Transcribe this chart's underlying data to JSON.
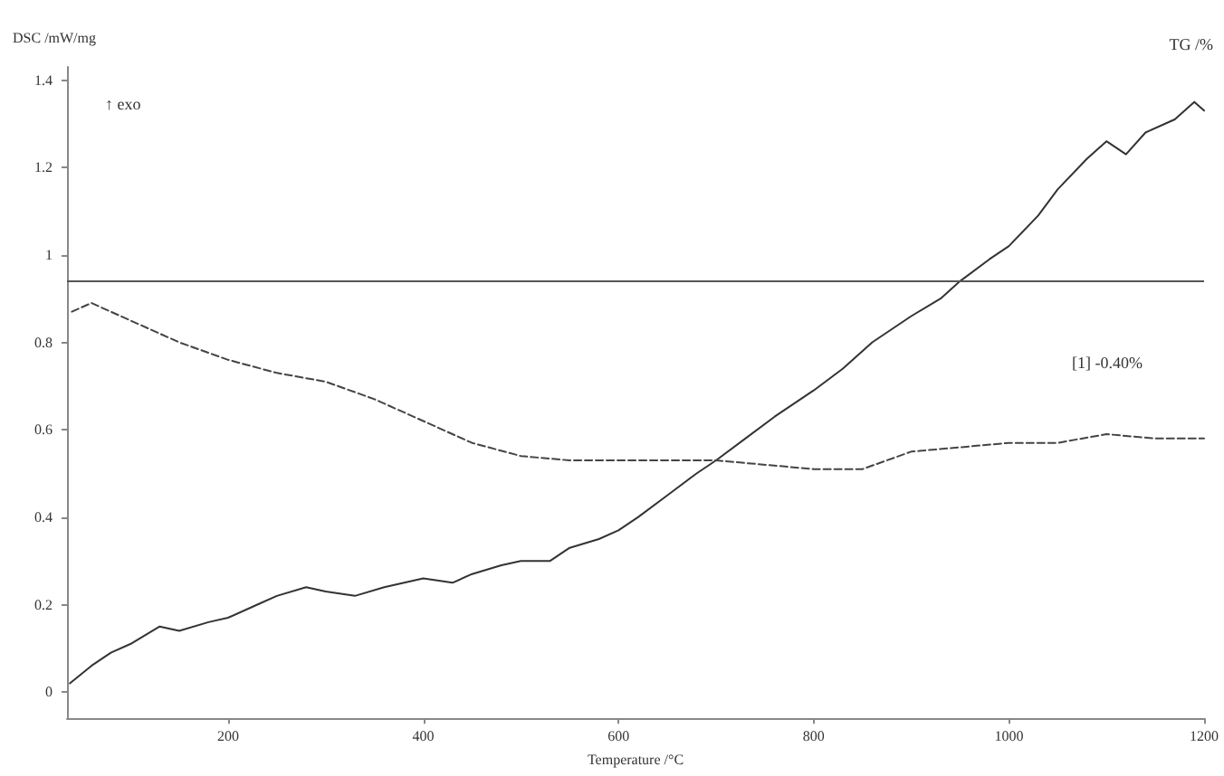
{
  "chart_data": {
    "type": "line",
    "xlabel": "Temperature /°C",
    "ylabel": "DSC /mW/mg",
    "y2label": "TG /%",
    "annotations": [
      "↑ exo",
      "[1] -0.40%"
    ],
    "xlim": [
      35,
      1200
    ],
    "xticks": [
      200,
      400,
      600,
      800,
      1000,
      1200
    ],
    "ylim": [
      -0.06,
      1.43
    ],
    "yticks": [
      0,
      0.2,
      0.4,
      0.6,
      0.8,
      1,
      1.2,
      1.4
    ],
    "grid": false,
    "marker": "none",
    "ref_lines": [
      {
        "axis": "y",
        "value": 0.94,
        "color": "#555555"
      }
    ],
    "series": [
      {
        "color": "#333333",
        "line_style": "solid",
        "x": [
          38,
          60,
          80,
          100,
          130,
          150,
          180,
          200,
          230,
          250,
          280,
          300,
          330,
          360,
          400,
          430,
          450,
          480,
          500,
          530,
          550,
          580,
          600,
          620,
          650,
          680,
          700,
          730,
          760,
          800,
          830,
          860,
          900,
          930,
          950,
          980,
          1000,
          1030,
          1050,
          1080,
          1100,
          1120,
          1140,
          1170,
          1190,
          1200
        ],
        "values": [
          0.02,
          0.06,
          0.09,
          0.11,
          0.15,
          0.14,
          0.16,
          0.17,
          0.2,
          0.22,
          0.24,
          0.23,
          0.22,
          0.24,
          0.26,
          0.25,
          0.27,
          0.29,
          0.3,
          0.3,
          0.33,
          0.35,
          0.37,
          0.4,
          0.45,
          0.5,
          0.53,
          0.58,
          0.63,
          0.69,
          0.74,
          0.8,
          0.86,
          0.9,
          0.94,
          0.99,
          1.02,
          1.09,
          1.15,
          1.22,
          1.26,
          1.23,
          1.28,
          1.31,
          1.35,
          1.33
        ]
      },
      {
        "color": "#444444",
        "line_style": "dashed",
        "x": [
          40,
          60,
          100,
          150,
          200,
          250,
          300,
          350,
          400,
          450,
          500,
          550,
          600,
          700,
          800,
          850,
          900,
          950,
          1000,
          1050,
          1100,
          1150,
          1200
        ],
        "values": [
          0.87,
          0.89,
          0.85,
          0.8,
          0.76,
          0.73,
          0.71,
          0.67,
          0.62,
          0.57,
          0.54,
          0.53,
          0.53,
          0.53,
          0.51,
          0.51,
          0.55,
          0.56,
          0.57,
          0.57,
          0.59,
          0.58,
          0.58
        ]
      }
    ]
  }
}
